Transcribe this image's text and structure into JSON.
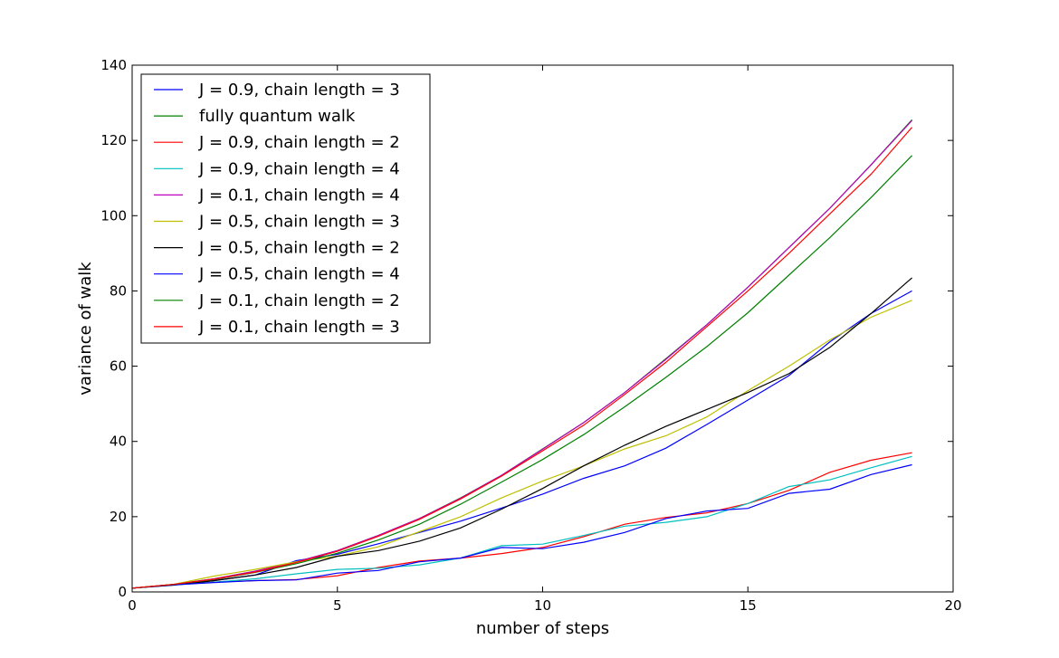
{
  "chart_data": {
    "type": "line",
    "title": "",
    "xlabel": "number of steps",
    "ylabel": "variance of walk",
    "xlim": [
      0,
      20
    ],
    "ylim": [
      0,
      140
    ],
    "xticks": [
      0,
      5,
      10,
      15,
      20
    ],
    "yticks": [
      0,
      20,
      40,
      60,
      80,
      100,
      120,
      140
    ],
    "grid": false,
    "legend_position": "upper-left",
    "x": [
      0,
      1,
      2,
      3,
      4,
      5,
      6,
      7,
      8,
      9,
      10,
      11,
      12,
      13,
      14,
      15,
      16,
      17,
      18,
      19
    ],
    "series": [
      {
        "name": "J = 0.9, chain length = 3",
        "color": "#0000ff",
        "values": [
          1.0,
          1.9,
          3.0,
          4.5,
          8.3,
          10.0,
          12.8,
          15.8,
          18.8,
          22.3,
          26.0,
          30.2,
          33.5,
          38.2,
          44.5,
          51.0,
          57.5,
          66.5,
          74.0,
          80.0
        ]
      },
      {
        "name": "fully quantum walk",
        "color": "#008000",
        "values": [
          1.0,
          2.0,
          3.5,
          5.5,
          8.0,
          11.0,
          15.0,
          19.5,
          25.0,
          31.0,
          38.0,
          45.0,
          53.0,
          62.0,
          71.0,
          81.0,
          91.5,
          102.0,
          113.5,
          125.5
        ]
      },
      {
        "name": "J = 0.9, chain length = 2",
        "color": "#ff0000",
        "values": [
          1.0,
          1.9,
          2.6,
          3.0,
          3.3,
          4.3,
          6.5,
          8.2,
          9.0,
          10.2,
          11.8,
          14.7,
          18.0,
          19.8,
          21.0,
          23.5,
          27.0,
          31.8,
          35.0,
          37.0
        ]
      },
      {
        "name": "J = 0.9, chain length = 4",
        "color": "#00bfbf",
        "values": [
          1.0,
          1.8,
          2.6,
          3.5,
          4.8,
          6.0,
          6.3,
          7.2,
          9.0,
          12.3,
          12.7,
          15.0,
          17.5,
          18.5,
          20.0,
          23.5,
          28.0,
          29.8,
          33.0,
          36.0
        ]
      },
      {
        "name": "J = 0.1, chain length = 4",
        "color": "#bf00bf",
        "values": [
          1.0,
          2.0,
          3.5,
          5.5,
          8.0,
          11.0,
          15.0,
          19.5,
          24.9,
          31.0,
          37.9,
          45.0,
          53.0,
          61.8,
          71.0,
          81.0,
          91.5,
          102.0,
          113.5,
          125.3
        ]
      },
      {
        "name": "J = 0.5, chain length = 3",
        "color": "#bfbf00",
        "values": [
          1.0,
          2.0,
          4.2,
          6.0,
          8.0,
          9.5,
          12.0,
          16.0,
          20.0,
          25.0,
          29.5,
          33.5,
          38.0,
          41.5,
          46.5,
          53.5,
          60.0,
          67.0,
          73.0,
          77.5
        ]
      },
      {
        "name": "J = 0.5, chain length = 2",
        "color": "#000000",
        "values": [
          1.0,
          1.8,
          3.0,
          4.5,
          6.5,
          9.5,
          11.0,
          13.5,
          17.0,
          22.0,
          27.5,
          33.5,
          39.0,
          44.0,
          48.5,
          53.0,
          58.0,
          65.0,
          74.0,
          83.5
        ]
      },
      {
        "name": "J = 0.5, chain length = 4",
        "color": "#0000ff",
        "values": [
          1.0,
          1.9,
          2.5,
          3.0,
          3.2,
          5.0,
          5.7,
          8.0,
          9.0,
          11.8,
          11.5,
          13.2,
          15.8,
          19.5,
          21.5,
          22.2,
          26.2,
          27.3,
          31.2,
          33.8
        ]
      },
      {
        "name": "J = 0.1, chain length = 2",
        "color": "#008000",
        "values": [
          1.0,
          2.0,
          3.3,
          5.2,
          7.5,
          10.3,
          13.8,
          18.0,
          23.3,
          29.2,
          35.2,
          41.8,
          49.2,
          57.0,
          65.2,
          74.2,
          84.2,
          94.2,
          104.8,
          116.0
        ]
      },
      {
        "name": "J = 0.1, chain length = 3",
        "color": "#ff0000",
        "values": [
          1.0,
          2.0,
          3.4,
          5.3,
          7.8,
          10.8,
          14.8,
          19.3,
          24.7,
          30.8,
          37.5,
          44.3,
          52.5,
          61.0,
          70.5,
          80.0,
          90.0,
          100.5,
          111.0,
          123.5
        ]
      }
    ]
  }
}
